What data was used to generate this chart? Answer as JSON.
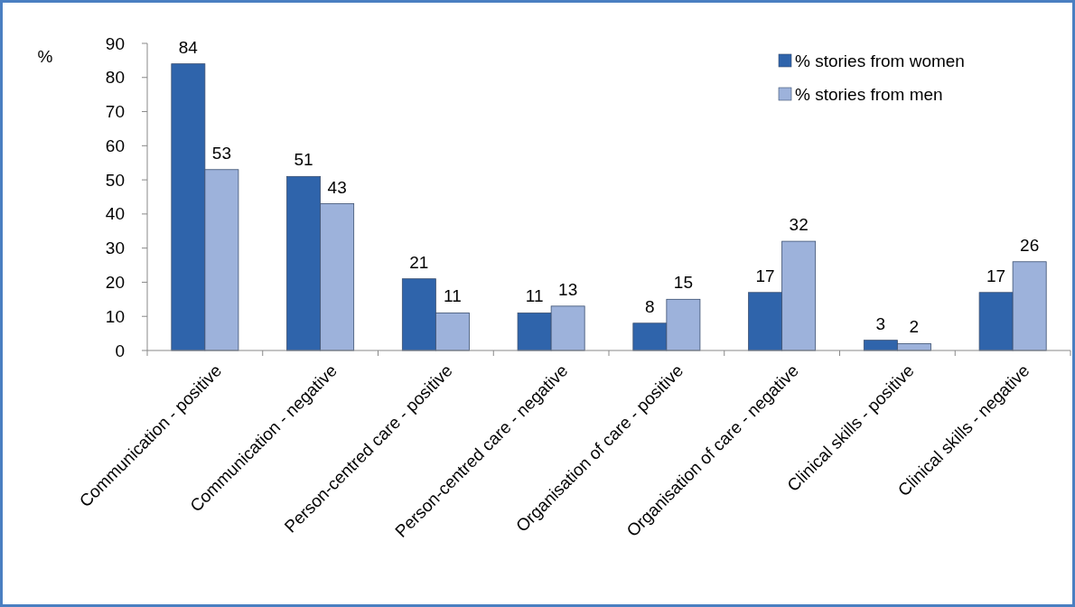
{
  "chart_data": {
    "type": "bar",
    "ylabel": "%",
    "categories": [
      "Communication - positive",
      "Communication - negative",
      "Person-centred care - positive",
      "Person-centred care - negative",
      "Organisation of care - positive",
      "Organisation of care - negative",
      "Clinical skills - positive",
      "Clinical skills - negative"
    ],
    "series": [
      {
        "name": "% stories from women",
        "color": "#2f64ab",
        "values": [
          84,
          51,
          21,
          11,
          8,
          17,
          3,
          17
        ]
      },
      {
        "name": "% stories from men",
        "color": "#9db2db",
        "values": [
          53,
          43,
          11,
          13,
          15,
          32,
          2,
          26
        ]
      }
    ],
    "ylim": [
      0,
      90
    ],
    "yticks": [
      0,
      10,
      20,
      30,
      40,
      50,
      60,
      70,
      80,
      90
    ],
    "data_labels": true,
    "legend": "top right",
    "grid": false
  }
}
